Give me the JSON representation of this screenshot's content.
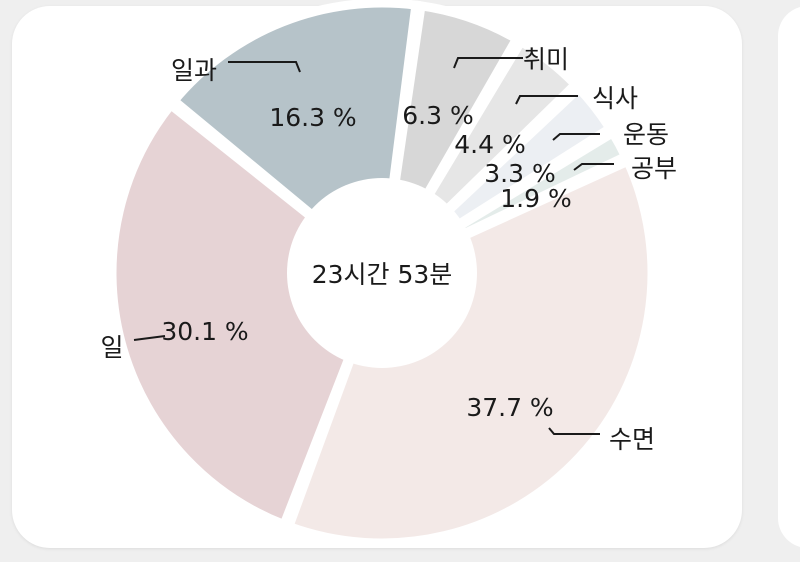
{
  "chart_data": {
    "type": "pie",
    "center_label": "23시간 53분",
    "slices": [
      {
        "label": "수면",
        "value": 37.7,
        "value_text": "37.7 %",
        "color": "#f3e9e7"
      },
      {
        "label": "일",
        "value": 30.1,
        "value_text": "30.1 %",
        "color": "#e6d3d5"
      },
      {
        "label": "일과",
        "value": 16.3,
        "value_text": "16.3 %",
        "color": "#b6c3c9"
      },
      {
        "label": "취미",
        "value": 6.3,
        "value_text": "6.3 %",
        "color": "#d7d7d7"
      },
      {
        "label": "식사",
        "value": 4.4,
        "value_text": "4.4 %",
        "color": "#e6e6e6"
      },
      {
        "label": "운동",
        "value": 3.3,
        "value_text": "3.3 %",
        "color": "#eceff3"
      },
      {
        "label": "공부",
        "value": 1.9,
        "value_text": "1.9 %",
        "color": "#e4ecea"
      }
    ]
  }
}
